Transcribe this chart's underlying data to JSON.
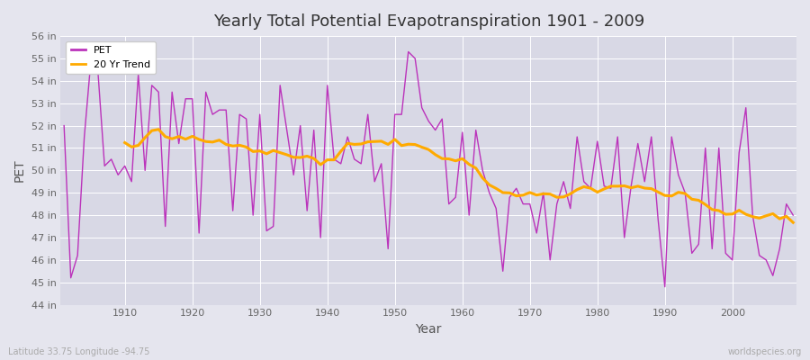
{
  "title": "Yearly Total Potential Evapotranspiration 1901 - 2009",
  "xlabel": "Year",
  "ylabel": "PET",
  "bottom_left_label": "Latitude 33.75 Longitude -94.75",
  "bottom_right_label": "worldspecies.org",
  "pet_color": "#bb33bb",
  "trend_color": "#ffaa00",
  "bg_color": "#e5e5ee",
  "plot_bg_color": "#d8d8e5",
  "grid_color": "#ffffff",
  "ylim": [
    44,
    56
  ],
  "ytick_labels": [
    "44 in",
    "45 in",
    "46 in",
    "47 in",
    "48 in",
    "49 in",
    "50 in",
    "51 in",
    "52 in",
    "53 in",
    "54 in",
    "55 in",
    "56 in"
  ],
  "ytick_values": [
    44,
    45,
    46,
    47,
    48,
    49,
    50,
    51,
    52,
    53,
    54,
    55,
    56
  ],
  "years": [
    1901,
    1902,
    1903,
    1904,
    1905,
    1906,
    1907,
    1908,
    1909,
    1910,
    1911,
    1912,
    1913,
    1914,
    1915,
    1916,
    1917,
    1918,
    1919,
    1920,
    1921,
    1922,
    1923,
    1924,
    1925,
    1926,
    1927,
    1928,
    1929,
    1930,
    1931,
    1932,
    1933,
    1934,
    1935,
    1936,
    1937,
    1938,
    1939,
    1940,
    1941,
    1942,
    1943,
    1944,
    1945,
    1946,
    1947,
    1948,
    1949,
    1950,
    1951,
    1952,
    1953,
    1954,
    1955,
    1956,
    1957,
    1958,
    1959,
    1960,
    1961,
    1962,
    1963,
    1964,
    1965,
    1966,
    1967,
    1968,
    1969,
    1970,
    1971,
    1972,
    1973,
    1974,
    1975,
    1976,
    1977,
    1978,
    1979,
    1980,
    1981,
    1982,
    1983,
    1984,
    1985,
    1986,
    1987,
    1988,
    1989,
    1990,
    1991,
    1992,
    1993,
    1994,
    1995,
    1996,
    1997,
    1998,
    1999,
    2000,
    2001,
    2002,
    2003,
    2004,
    2005,
    2006,
    2007,
    2008,
    2009
  ],
  "pet_values": [
    52.0,
    45.2,
    46.2,
    51.5,
    55.0,
    54.5,
    50.2,
    50.5,
    49.8,
    50.2,
    49.5,
    54.3,
    50.0,
    53.8,
    53.5,
    47.5,
    53.5,
    51.2,
    53.2,
    53.2,
    47.2,
    53.5,
    52.5,
    52.7,
    52.7,
    48.2,
    52.5,
    52.3,
    48.0,
    52.5,
    47.3,
    47.5,
    53.8,
    51.8,
    49.8,
    52.0,
    48.2,
    51.8,
    47.0,
    53.8,
    50.5,
    50.3,
    51.5,
    50.5,
    50.3,
    52.5,
    49.5,
    50.3,
    46.5,
    52.5,
    52.5,
    55.3,
    55.0,
    52.8,
    52.2,
    51.8,
    52.3,
    48.5,
    48.8,
    51.7,
    48.0,
    51.8,
    50.0,
    49.0,
    48.3,
    45.5,
    48.8,
    49.2,
    48.5,
    48.5,
    47.2,
    49.0,
    46.0,
    48.5,
    49.5,
    48.3,
    51.5,
    49.5,
    49.2,
    51.3,
    49.3,
    49.2,
    51.5,
    47.0,
    49.3,
    51.2,
    49.5,
    51.5,
    47.8,
    44.8,
    51.5,
    49.8,
    49.0,
    46.3,
    46.7,
    51.0,
    46.5,
    51.0,
    46.3,
    46.0,
    50.8,
    52.8,
    48.0,
    46.2,
    46.0,
    45.3,
    46.5,
    48.5,
    48.0
  ],
  "xtick_values": [
    1910,
    1920,
    1930,
    1940,
    1950,
    1960,
    1970,
    1980,
    1990,
    2000
  ],
  "trend_window": 20
}
